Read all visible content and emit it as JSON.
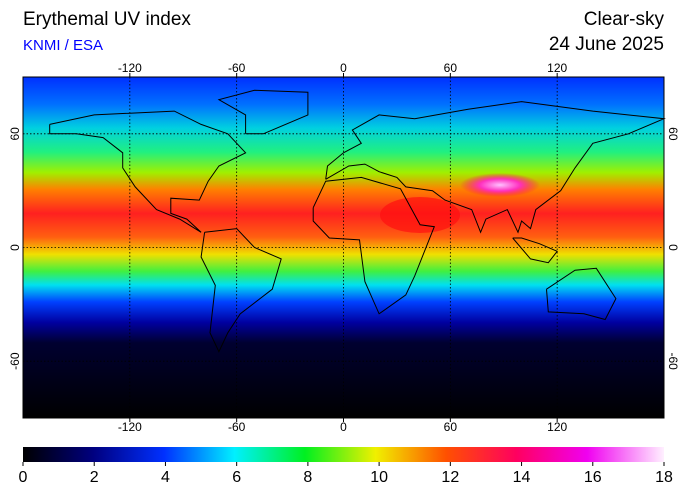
{
  "header": {
    "title": "Erythemal UV index",
    "source": "KNMI / ESA",
    "condition": "Clear-sky",
    "date": "24 June 2025"
  },
  "map": {
    "lon_range": [
      -180,
      180
    ],
    "lat_range": [
      -90,
      90
    ],
    "lon_ticks": [
      -120,
      -60,
      0,
      60,
      120
    ],
    "lat_ticks": [
      60,
      0,
      -60
    ]
  },
  "colorbar": {
    "range": [
      0,
      18
    ],
    "ticks": [
      0,
      2,
      4,
      6,
      8,
      10,
      12,
      14,
      16,
      18
    ]
  }
}
